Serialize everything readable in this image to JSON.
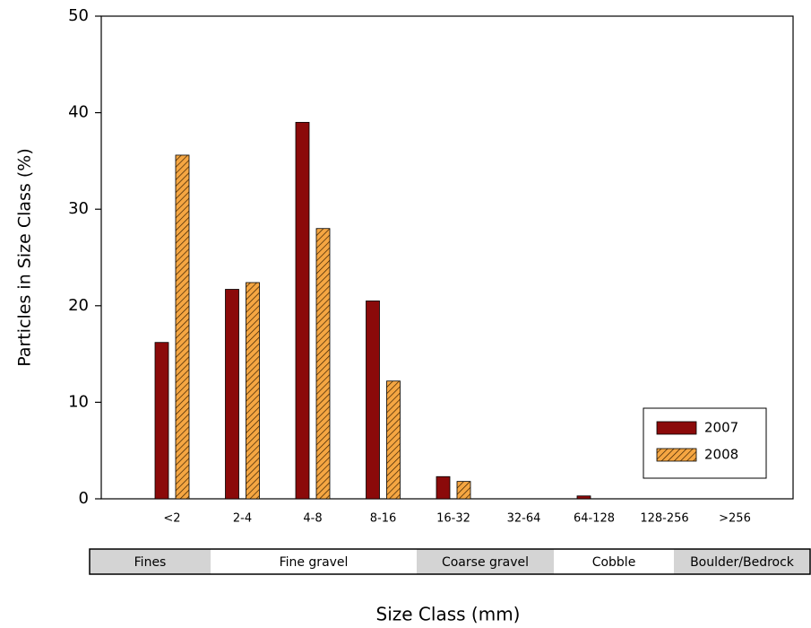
{
  "chart_data": {
    "type": "bar",
    "y_label": "Particles in Size Class (%)",
    "x_label": "Size Class (mm)",
    "categories": [
      "<2",
      "2-4",
      "4-8",
      "8-16",
      "16-32",
      "32-64",
      "64-128",
      "128-256",
      ">256"
    ],
    "series": [
      {
        "name": "2007",
        "color": "#8b0a0a",
        "values": [
          16.2,
          21.7,
          39,
          20.5,
          2.3,
          0,
          0.3,
          0,
          0
        ]
      },
      {
        "name": "2008",
        "color": "#f5a642",
        "hatch": true,
        "values": [
          35.6,
          22.4,
          28,
          12.2,
          1.8,
          0,
          0,
          0,
          0
        ]
      }
    ],
    "ylim": [
      0,
      50
    ],
    "yticks": [
      0,
      10,
      20,
      30,
      40,
      50
    ],
    "grid": false,
    "legend": "lower right",
    "size_groups": [
      "Fines",
      "Fine gravel",
      "Coarse gravel",
      "Cobble",
      "Boulder/Bedrock"
    ]
  }
}
